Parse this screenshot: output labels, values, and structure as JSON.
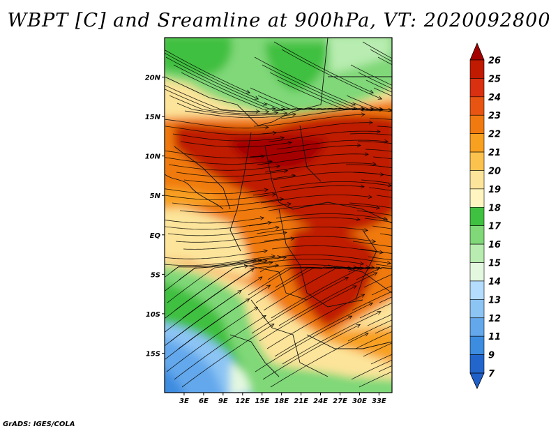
{
  "title": "WBPT [C] and Sreamline at 900hPa, VT: 2020092800",
  "credit": "GrADS: IGES/COLA",
  "map": {
    "variable": "WBPT [C]",
    "overlay": "Streamline",
    "level": "900hPa",
    "valid_time": "2020092800",
    "lon_range": [
      0,
      35
    ],
    "lat_range": [
      -20,
      25
    ],
    "lon_ticks": [
      {
        "value": 3,
        "label": "3E"
      },
      {
        "value": 6,
        "label": "6E"
      },
      {
        "value": 9,
        "label": "9E"
      },
      {
        "value": 12,
        "label": "12E"
      },
      {
        "value": 15,
        "label": "15E"
      },
      {
        "value": 18,
        "label": "18E"
      },
      {
        "value": 21,
        "label": "21E"
      },
      {
        "value": 24,
        "label": "24E"
      },
      {
        "value": 27,
        "label": "27E"
      },
      {
        "value": 30,
        "label": "30E"
      },
      {
        "value": 33,
        "label": "33E"
      }
    ],
    "lat_ticks": [
      {
        "value": 20,
        "label": "20N"
      },
      {
        "value": 15,
        "label": "15N"
      },
      {
        "value": 10,
        "label": "10N"
      },
      {
        "value": 5,
        "label": "5N"
      },
      {
        "value": 0,
        "label": "EQ"
      },
      {
        "value": -5,
        "label": "5S"
      },
      {
        "value": -10,
        "label": "10S"
      },
      {
        "value": -15,
        "label": "15S"
      }
    ]
  },
  "colorbar": {
    "levels": [
      {
        "label": "26",
        "color": "#a50000"
      },
      {
        "label": "25",
        "color": "#c01a00"
      },
      {
        "label": "24",
        "color": "#d83010"
      },
      {
        "label": "23",
        "color": "#e85512"
      },
      {
        "label": "22",
        "color": "#f07a10"
      },
      {
        "label": "21",
        "color": "#f8a020"
      },
      {
        "label": "20",
        "color": "#fcc24e"
      },
      {
        "label": "19",
        "color": "#fce49a"
      },
      {
        "label": "18",
        "color": "#fff5c0"
      },
      {
        "label": "17",
        "color": "#40c040"
      },
      {
        "label": "16",
        "color": "#80d878"
      },
      {
        "label": "15",
        "color": "#b8ecb0"
      },
      {
        "label": "14",
        "color": "#e4f8e0"
      },
      {
        "label": "13",
        "color": "#b4dcfc"
      },
      {
        "label": "12",
        "color": "#8cc4f4"
      },
      {
        "label": "11",
        "color": "#64a8ec"
      },
      {
        "label": "9",
        "color": "#3c8ce0"
      },
      {
        "label": "7",
        "color": "#2266cc"
      }
    ],
    "bottom_color": "#1f5fc8"
  }
}
